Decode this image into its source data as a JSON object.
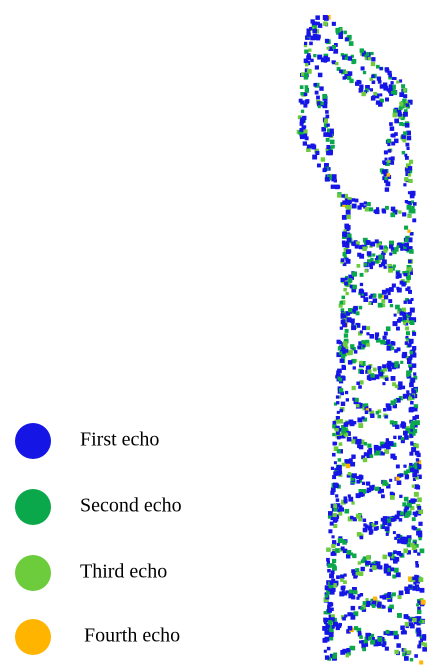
{
  "legend": {
    "items": [
      {
        "label": "First echo",
        "color": "#1515e6"
      },
      {
        "label": "Second echo",
        "color": "#0aa84a"
      },
      {
        "label": "Third echo",
        "color": "#6ccc3c"
      },
      {
        "label": "Fourth echo",
        "color": "#ffb400"
      }
    ]
  }
}
